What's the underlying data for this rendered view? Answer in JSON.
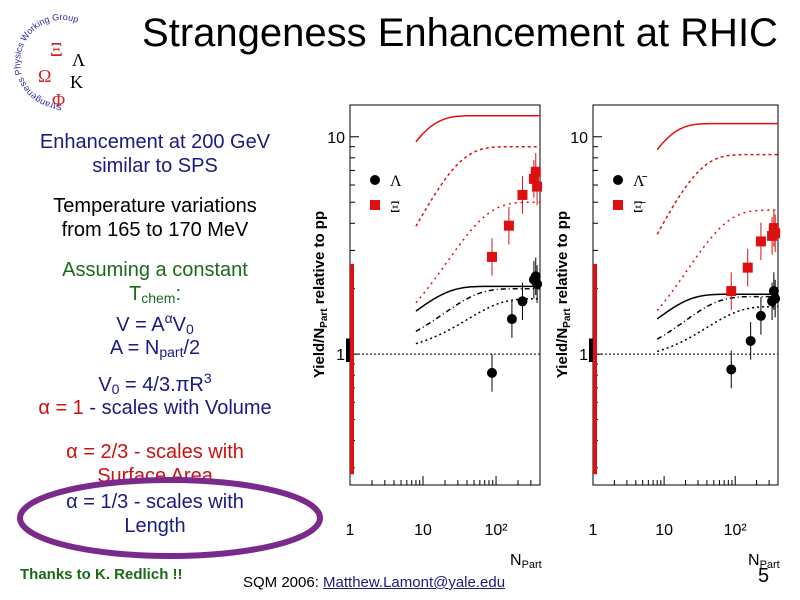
{
  "title": "Strangeness Enhancement at RHIC",
  "logo": {
    "ring_text": "Strangeness Physics Working Group",
    "l1": "Ξ",
    "l2": "Λ",
    "l3": "Ω",
    "l4": "K",
    "l5": "Φ"
  },
  "bullets": {
    "b1_line1": "Enhancement at 200 GeV",
    "b1_line2": "similar to SPS",
    "b2_line1": "Temperature variations",
    "b2_line2": "from 165 to 170 MeV",
    "b3_line1": "Assuming a constant",
    "tchem_t": "T",
    "tchem_sub": "chem",
    "tchem_colon": ":",
    "v_left": "V = A",
    "v_sup": "α",
    "v_mid": "V",
    "v_sub": "0",
    "a_left": "A = N",
    "a_sub": "part",
    "a_right": "/2",
    "v0_left": "V",
    "v0_sub": "0",
    "v0_right": " = 4/3.πR",
    "v0_sup": "3",
    "alpha1_red": "α = 1",
    "alpha1_rest": " - scales with Volume",
    "alpha2_line1": "α = 2/3 - scales with",
    "alpha2_line2": "Surface Area",
    "alpha3_line1": "α = 1/3 - scales with",
    "alpha3_line2": "Length"
  },
  "thanks": "Thanks to K. Redlich !!",
  "footer_prefix": "SQM 2006: ",
  "footer_link": "Matthew.Lamont@yale.edu",
  "page_number": "5",
  "colors": {
    "red": "#dd1111",
    "black": "#000000",
    "ellipse": "#7a2a8a"
  },
  "chart_data": [
    {
      "type": "scatter",
      "ylabel_main": "Yield/N",
      "ylabel_sub": "Part",
      "ylabel_rest": " relative to pp",
      "xlabel_main": "N",
      "xlabel_sub": "Part",
      "xscale": "log",
      "yscale": "log",
      "xlim": [
        1,
        400
      ],
      "ylim": [
        0.25,
        14
      ],
      "x_ticks": [
        "1",
        "10",
        "10²"
      ],
      "y_ticks": [
        "1",
        "10"
      ],
      "legend": [
        "Λ",
        "Ξ"
      ],
      "series": [
        {
          "name": "Λ",
          "marker": "circle",
          "color": "#000000",
          "points": [
            [
              88,
              0.82
            ],
            [
              165,
              1.45
            ],
            [
              230,
              1.75
            ],
            [
              330,
              2.2
            ],
            [
              350,
              2.28
            ],
            [
              365,
              2.1
            ]
          ]
        },
        {
          "name": "Ξ",
          "marker": "square",
          "color": "#dd1111",
          "points": [
            [
              88,
              2.8
            ],
            [
              150,
              3.9
            ],
            [
              230,
              5.4
            ],
            [
              330,
              6.4
            ],
            [
              350,
              6.9
            ],
            [
              365,
              5.9
            ]
          ]
        }
      ]
    },
    {
      "type": "scatter",
      "ylabel_main": "Yield/N",
      "ylabel_sub": "Part",
      "ylabel_rest": " relative to pp",
      "xlabel_main": "N",
      "xlabel_sub": "Part",
      "xscale": "log",
      "yscale": "log",
      "xlim": [
        1,
        400
      ],
      "ylim": [
        0.25,
        14
      ],
      "x_ticks": [
        "1",
        "10",
        "10²"
      ],
      "y_ticks": [
        "1",
        "10"
      ],
      "legend": [
        "Λ̄",
        "Ξ̄"
      ],
      "series": [
        {
          "name": "Λ̄",
          "marker": "circle",
          "color": "#000000",
          "points": [
            [
              88,
              0.85
            ],
            [
              165,
              1.15
            ],
            [
              230,
              1.5
            ],
            [
              330,
              1.75
            ],
            [
              350,
              1.95
            ],
            [
              365,
              1.8
            ]
          ]
        },
        {
          "name": "Ξ̄",
          "marker": "square",
          "color": "#dd1111",
          "points": [
            [
              88,
              1.95
            ],
            [
              150,
              2.5
            ],
            [
              230,
              3.3
            ],
            [
              330,
              3.5
            ],
            [
              350,
              3.8
            ],
            [
              365,
              3.6
            ]
          ]
        }
      ]
    }
  ]
}
